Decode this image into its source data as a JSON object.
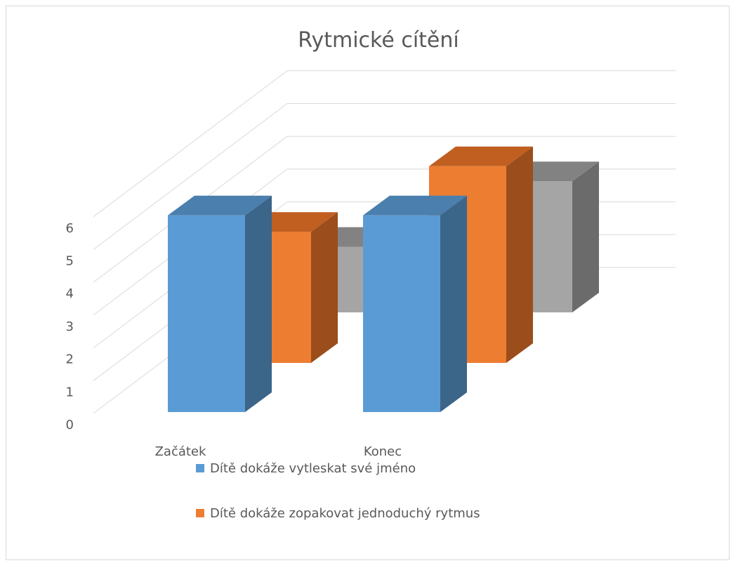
{
  "chart_data": {
    "type": "bar",
    "title": "Rytmické cítění",
    "categories": [
      "Začátek",
      "Konec"
    ],
    "series": [
      {
        "name": "Dítě dokáže vytleskat své jméno",
        "values": [
          6,
          6
        ],
        "color": "#5b9bd5",
        "side_color": "#3b6589",
        "top_color": "#4a7fae"
      },
      {
        "name": "Dítě dokáže zopakovat jednoduchý rytmus",
        "values": [
          4,
          6
        ],
        "color": "#ed7d31",
        "side_color": "#9b4d1c",
        "top_color": "#c15f21"
      },
      {
        "name": "",
        "values": [
          2,
          4
        ],
        "color": "#a5a5a5",
        "side_color": "#6b6b6b",
        "top_color": "#828282"
      }
    ],
    "ylim": [
      0,
      6
    ],
    "yticks": [
      "0",
      "1",
      "2",
      "3",
      "4",
      "5",
      "6"
    ],
    "grid": true,
    "legend_position": "bottom"
  }
}
